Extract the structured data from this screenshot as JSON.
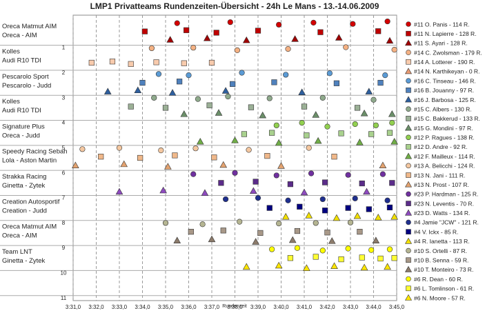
{
  "chart_data": {
    "type": "scatter",
    "title": "LMP1 Privatteams Rundenzeiten-Übersicht - 24h Le Mans - 13.-14.06.2009",
    "x_label": "Rundenzeit",
    "xlim": [
      211,
      225
    ],
    "xticks": [
      {
        "value": 211,
        "label": "3:31,0"
      },
      {
        "value": 212,
        "label": "3:32,0"
      },
      {
        "value": 213,
        "label": "3:33,0"
      },
      {
        "value": 214,
        "label": "3:34,0"
      },
      {
        "value": 215,
        "label": "3:35,0"
      },
      {
        "value": 216,
        "label": "3:36,0"
      },
      {
        "value": 217,
        "label": "3:37,0"
      },
      {
        "value": 218,
        "label": "3:38,0"
      },
      {
        "value": 219,
        "label": "3:39,0"
      },
      {
        "value": 220,
        "label": "3:40,0"
      },
      {
        "value": 221,
        "label": "3:41,0"
      },
      {
        "value": 222,
        "label": "3:42,0"
      },
      {
        "value": 223,
        "label": "3:43,0"
      },
      {
        "value": 224,
        "label": "3:44,0"
      },
      {
        "value": 225,
        "label": "3:45,0"
      }
    ],
    "ylim": [
      11.2,
      -0.2
    ],
    "yticks": [
      1,
      2,
      3,
      4,
      5,
      6,
      7,
      8,
      9,
      10,
      11
    ],
    "grid": true,
    "legend": "right",
    "teams": [
      [
        "Oreca Matmut AIM",
        "Oreca - AIM"
      ],
      [
        "Kolles",
        "Audi R10 TDI"
      ],
      [
        "Pescarolo Sport",
        "Pescarolo - Judd"
      ],
      [
        "Kolles",
        "Audi R10 TDI"
      ],
      [
        "Signature Plus",
        "Oreca - Judd"
      ],
      [
        "Speedy Racing Sebah",
        "Lola - Aston Martin"
      ],
      [
        "Strakka Racing",
        "Ginetta - Zytek"
      ],
      [
        "Creation Autosportif",
        "Creation - Judd"
      ],
      [
        "Oreca Matmut AIM",
        "Oreca - AIM"
      ],
      [
        "Team LNT",
        "Ginetta - Zytek"
      ]
    ],
    "series": [
      {
        "name": "#11 O. Panis - 114 R.",
        "color": "#d40000",
        "marker": "circle",
        "x": [
          215.5,
          217.8,
          219.9,
          221.4,
          223.1,
          224.6
        ],
        "values": [
          0.12,
          0.08,
          0.18,
          0.1,
          0.15,
          0.05
        ]
      },
      {
        "name": "#11 N. Lapierre - 128 R.",
        "color": "#c00000",
        "marker": "square",
        "x": [
          214.1,
          215.9,
          217.2,
          219.0,
          221.7,
          224.2
        ],
        "values": [
          0.45,
          0.4,
          0.5,
          0.42,
          0.48,
          0.44
        ]
      },
      {
        "name": "#11 S. Ayari - 128 R.",
        "color": "#a00000",
        "marker": "triangle",
        "x": [
          215.2,
          216.8,
          218.5,
          220.6,
          222.5,
          224.7
        ],
        "values": [
          0.78,
          0.72,
          0.8,
          0.75,
          0.7,
          0.82
        ]
      },
      {
        "name": "#14 C. Zwolsman - 179 R.",
        "color": "#f4b183",
        "marker": "circle",
        "x": [
          214.4,
          216.2,
          218.1,
          220.3,
          222.8,
          224.9
        ],
        "values": [
          1.12,
          1.1,
          1.2,
          1.15,
          1.08,
          1.18
        ]
      },
      {
        "name": "#14 A. Lotterer - 190 R.",
        "color": "#f8cbad",
        "marker": "square",
        "x": [
          211.8,
          212.7,
          213.5,
          214.6,
          215.8,
          217.0
        ],
        "values": [
          1.7,
          1.65,
          1.75,
          1.68,
          1.72,
          1.7
        ]
      },
      {
        "name": "#14 N. Karthikeyan - 0 R.",
        "color": "#e89a72",
        "marker": "triangle",
        "x": [],
        "values": []
      },
      {
        "name": "#16 C. Tinseau - 146 R.",
        "color": "#5b9bd5",
        "marker": "circle",
        "x": [
          214.7,
          216.0,
          218.3,
          220.2,
          222.1,
          224.5
        ],
        "values": [
          2.15,
          2.2,
          2.1,
          2.18,
          2.12,
          2.2
        ]
      },
      {
        "name": "#16 B. Jouanny - 97 R.",
        "color": "#4f81bd",
        "marker": "square",
        "x": [
          214.0,
          215.6,
          217.9,
          219.7,
          222.4,
          224.3
        ],
        "values": [
          2.5,
          2.45,
          2.55,
          2.48,
          2.52,
          2.5
        ]
      },
      {
        "name": "#16 J. Barbosa - 125 R.",
        "color": "#2e5f9e",
        "marker": "triangle",
        "x": [
          212.5,
          213.8,
          215.3,
          217.6,
          220.9,
          223.8
        ],
        "values": [
          2.85,
          2.8,
          2.9,
          2.82,
          2.88,
          2.85
        ]
      },
      {
        "name": "#15 C. Albers - 130 R.",
        "color": "#8faa8c",
        "marker": "circle",
        "x": [
          214.5,
          216.4,
          217.7,
          219.5,
          221.8,
          224.0
        ],
        "values": [
          3.1,
          3.15,
          3.05,
          3.12,
          3.1,
          3.18
        ]
      },
      {
        "name": "#15 C. Bakkerud - 133 R.",
        "color": "#9bb096",
        "marker": "square",
        "x": [
          213.5,
          215.0,
          216.9,
          218.7,
          221.0,
          223.3
        ],
        "values": [
          3.45,
          3.5,
          3.4,
          3.48,
          3.45,
          3.5
        ]
      },
      {
        "name": "#15 G. Mondini - 97 R.",
        "color": "#6b8f69",
        "marker": "triangle",
        "x": [
          215.8,
          217.3,
          219.2,
          221.5,
          223.6,
          224.8
        ],
        "values": [
          3.75,
          3.7,
          3.8,
          3.78,
          3.72,
          3.75
        ]
      },
      {
        "name": "#12 P. Ragues - 138 R.",
        "color": "#92d050",
        "marker": "circle",
        "x": [
          219.8,
          220.9,
          222.0,
          223.2,
          224.1,
          224.8
        ],
        "values": [
          4.2,
          4.1,
          4.25,
          4.15,
          4.2,
          4.1
        ]
      },
      {
        "name": "#12 D. Andre - 92 R.",
        "color": "#a9d18e",
        "marker": "square",
        "x": [
          218.4,
          219.6,
          221.1,
          222.6,
          223.9,
          224.7
        ],
        "values": [
          4.55,
          4.5,
          4.6,
          4.52,
          4.55,
          4.5
        ]
      },
      {
        "name": "#12 F. Mailleux - 114 R.",
        "color": "#70ad47",
        "marker": "triangle",
        "x": [
          216.5,
          218.0,
          219.9,
          221.6,
          223.4,
          224.9
        ],
        "values": [
          4.85,
          4.8,
          4.9,
          4.82,
          4.88,
          4.85
        ]
      },
      {
        "name": "#13 A. Belicchi - 124 R.",
        "color": "#f4c7a0",
        "marker": "circle",
        "x": [
          211.4,
          213.0,
          214.8,
          216.3,
          218.6,
          221.2
        ],
        "values": [
          5.15,
          5.1,
          5.2,
          5.12,
          5.18,
          5.1
        ]
      },
      {
        "name": "#13 N. Jani - 111 R.",
        "color": "#f0b88a",
        "marker": "square",
        "x": [
          212.2,
          213.9,
          215.4,
          217.1,
          219.4,
          222.3
        ],
        "values": [
          5.45,
          5.5,
          5.4,
          5.48,
          5.42,
          5.45
        ]
      },
      {
        "name": "#13 N. Prost - 107 R.",
        "color": "#e3a26f",
        "marker": "triangle",
        "x": [
          211.1,
          213.2,
          215.1,
          217.5,
          220.0,
          224.4
        ],
        "values": [
          5.8,
          5.75,
          5.85,
          5.78,
          5.82,
          5.8
        ]
      },
      {
        "name": "#23 P. Hardman - 125 R.",
        "color": "#7030a0",
        "marker": "circle",
        "x": [
          216.2,
          218.0,
          219.8,
          221.3,
          222.9,
          224.4
        ],
        "values": [
          6.15,
          6.1,
          6.2,
          6.12,
          6.18,
          6.15
        ]
      },
      {
        "name": "#23 N. Leventis - 70 R.",
        "color": "#5b2c8a",
        "marker": "square",
        "x": [
          217.4,
          218.9,
          220.4,
          221.9,
          223.5,
          224.8
        ],
        "values": [
          6.5,
          6.45,
          6.55,
          6.48,
          6.52,
          6.5
        ]
      },
      {
        "name": "#23 D. Watts - 134 R.",
        "color": "#8e4bbf",
        "marker": "triangle",
        "x": [
          213.0,
          214.9,
          216.7,
          218.8,
          221.0,
          223.7
        ],
        "values": [
          6.85,
          6.8,
          6.9,
          6.82,
          6.88,
          6.85
        ]
      },
      {
        "name": "#4 Jamie \"JCW\" - 121 R.",
        "color": "#1f2f8f",
        "marker": "circle",
        "x": [
          217.6,
          219.0,
          220.3,
          221.8,
          223.2,
          224.6
        ],
        "values": [
          7.15,
          7.1,
          7.2,
          7.15,
          7.12,
          7.2
        ]
      },
      {
        "name": "#4 V. Ickx - 85 R.",
        "color": "#000080",
        "marker": "square",
        "x": [
          219.5,
          220.8,
          221.9,
          222.9,
          223.8,
          224.7
        ],
        "values": [
          7.5,
          7.45,
          7.6,
          7.5,
          7.55,
          7.48
        ]
      },
      {
        "name": "#4 R. Ianetta - 113 R.",
        "color": "#f2e000",
        "marker": "triangle",
        "x": [
          220.2,
          221.2,
          222.4,
          223.3,
          224.2,
          224.9
        ],
        "values": [
          7.85,
          7.8,
          7.9,
          7.82,
          7.88,
          7.85
        ]
      },
      {
        "name": "#10 S. Ortelli - 87 R.",
        "color": "#b5b592",
        "marker": "circle",
        "x": [
          215.0,
          216.6,
          218.2,
          219.9,
          221.5,
          223.0
        ],
        "values": [
          8.1,
          8.15,
          8.05,
          8.12,
          8.1,
          8.08
        ]
      },
      {
        "name": "#10 B. Senna - 59 R.",
        "color": "#a89888",
        "marker": "square",
        "x": [
          216.1,
          217.5,
          219.1,
          220.7,
          222.0,
          223.4
        ],
        "values": [
          8.45,
          8.4,
          8.5,
          8.42,
          8.48,
          8.45
        ]
      },
      {
        "name": "#10 T. Monteiro - 73 R.",
        "color": "#8c7b6b",
        "marker": "triangle",
        "x": [
          215.5,
          217.0,
          218.9,
          220.5,
          222.2,
          224.1
        ],
        "values": [
          8.8,
          8.75,
          8.85,
          8.78,
          8.82,
          8.8
        ]
      },
      {
        "name": "#6 R. Dean - 60 R.",
        "color": "#ffff00",
        "marker": "circle",
        "x": [
          219.6,
          220.7,
          221.8,
          222.9,
          223.9,
          224.7
        ],
        "values": [
          9.15,
          9.1,
          9.2,
          9.12,
          9.18,
          9.15
        ]
      },
      {
        "name": "#6 L. Tomlinson - 61 R.",
        "color": "#ffff33",
        "marker": "square",
        "x": [
          220.4,
          221.5,
          222.6,
          223.5,
          224.3,
          224.9
        ],
        "values": [
          9.5,
          9.45,
          9.55,
          9.48,
          9.52,
          9.5
        ]
      },
      {
        "name": "#6 N. Moore - 57 R.",
        "color": "#ffe600",
        "marker": "triangle",
        "x": [
          218.5,
          219.9,
          221.1,
          222.3,
          223.6,
          224.6
        ],
        "values": [
          9.85,
          9.8,
          9.9,
          9.82,
          9.88,
          9.85
        ]
      }
    ]
  }
}
